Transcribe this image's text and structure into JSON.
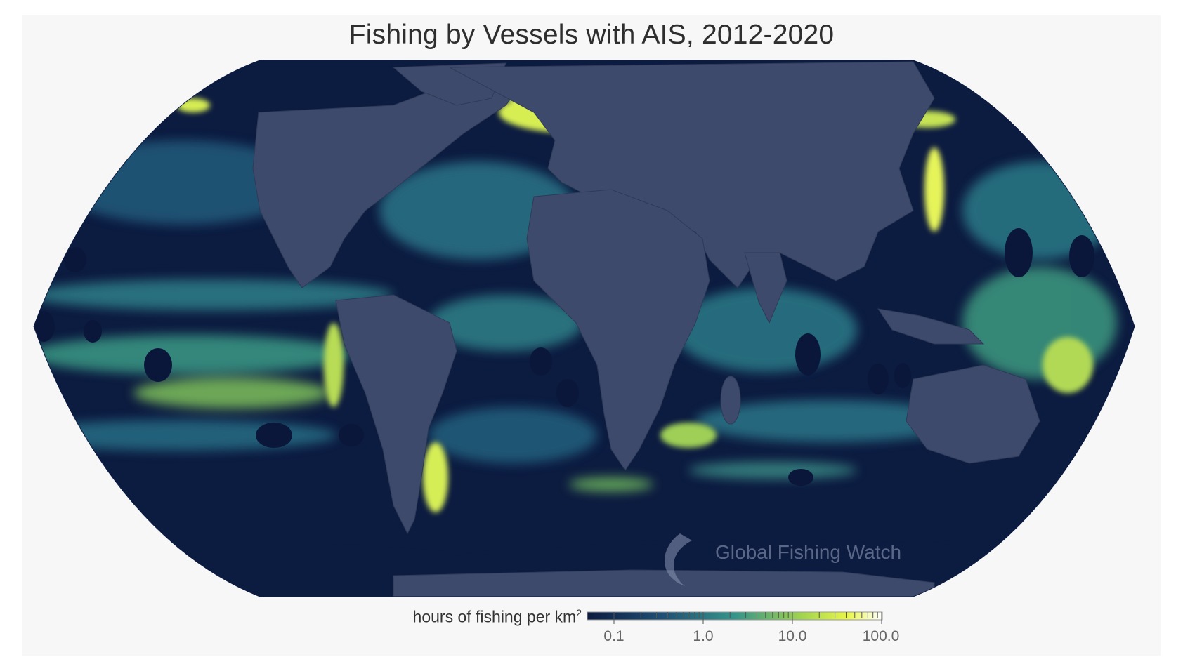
{
  "title": "Fishing by Vessels with AIS, 2012-2020",
  "watermark": "Global Fishing Watch",
  "legend": {
    "label": "hours of fishing per km",
    "label_superscript": "2",
    "scale": "log",
    "ticks": [
      "0.1",
      "1.0",
      "10.0",
      "100.0"
    ],
    "range": [
      0.03,
      100
    ]
  },
  "colors": {
    "land": "#3d4a6b",
    "ocean_low": "#0c1b40",
    "mid": "#2a7d8a",
    "high": "#b9e04a",
    "max": "#ffffcc",
    "background": "#f7f7f7"
  },
  "projection": "Robinson"
}
